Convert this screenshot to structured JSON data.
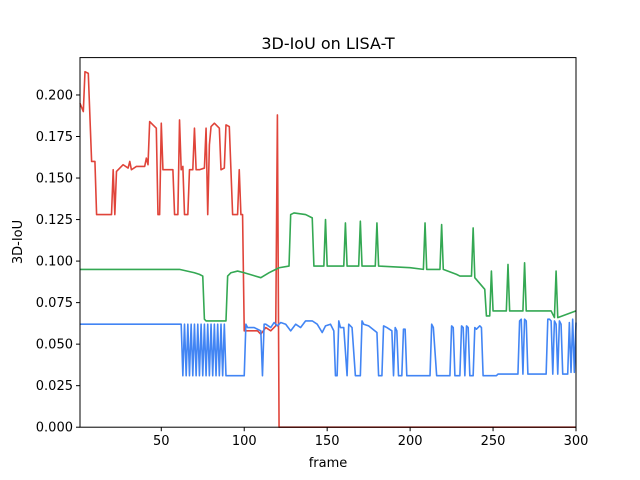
{
  "chart_data": {
    "type": "line",
    "title": "3D-IoU on LISA-T",
    "xlabel": "frame",
    "ylabel": "3D-IoU",
    "xlim": [
      1,
      300
    ],
    "ylim": [
      0,
      0.2225
    ],
    "xticks": [
      50,
      100,
      150,
      200,
      250,
      300
    ],
    "yticks": [
      0.0,
      0.025,
      0.05,
      0.075,
      0.1,
      0.125,
      0.15,
      0.175,
      0.2
    ],
    "ytick_labels": [
      "0.000",
      "0.025",
      "0.050",
      "0.075",
      "0.100",
      "0.125",
      "0.150",
      "0.175",
      "0.200"
    ],
    "grid": false,
    "legend": "none",
    "series": [
      {
        "color": "#e0443a",
        "points": [
          [
            1,
            0.195
          ],
          [
            3,
            0.19
          ],
          [
            4,
            0.214
          ],
          [
            6,
            0.213
          ],
          [
            8,
            0.16
          ],
          [
            10,
            0.16
          ],
          [
            11,
            0.128
          ],
          [
            20,
            0.128
          ],
          [
            21,
            0.155
          ],
          [
            22,
            0.128
          ],
          [
            23,
            0.154
          ],
          [
            25,
            0.156
          ],
          [
            27,
            0.158
          ],
          [
            30,
            0.156
          ],
          [
            31,
            0.16
          ],
          [
            32,
            0.155
          ],
          [
            35,
            0.157
          ],
          [
            40,
            0.157
          ],
          [
            41,
            0.162
          ],
          [
            42,
            0.158
          ],
          [
            43,
            0.184
          ],
          [
            45,
            0.182
          ],
          [
            47,
            0.18
          ],
          [
            48,
            0.128
          ],
          [
            49,
            0.128
          ],
          [
            50,
            0.183
          ],
          [
            51,
            0.155
          ],
          [
            57,
            0.155
          ],
          [
            58,
            0.128
          ],
          [
            60,
            0.128
          ],
          [
            61,
            0.185
          ],
          [
            62,
            0.155
          ],
          [
            63,
            0.157
          ],
          [
            64,
            0.128
          ],
          [
            66,
            0.128
          ],
          [
            67,
            0.155
          ],
          [
            69,
            0.155
          ],
          [
            70,
            0.18
          ],
          [
            71,
            0.155
          ],
          [
            73,
            0.155
          ],
          [
            76,
            0.156
          ],
          [
            77,
            0.18
          ],
          [
            78,
            0.128
          ],
          [
            79,
            0.17
          ],
          [
            80,
            0.181
          ],
          [
            82,
            0.183
          ],
          [
            85,
            0.18
          ],
          [
            86,
            0.155
          ],
          [
            88,
            0.156
          ],
          [
            89,
            0.182
          ],
          [
            91,
            0.181
          ],
          [
            93,
            0.128
          ],
          [
            96,
            0.128
          ],
          [
            97,
            0.155
          ],
          [
            98,
            0.128
          ],
          [
            99,
            0.128
          ],
          [
            100,
            0.058
          ],
          [
            104,
            0.058
          ],
          [
            108,
            0.058
          ],
          [
            110,
            0.056
          ],
          [
            113,
            0.06
          ],
          [
            116,
            0.058
          ],
          [
            119,
            0.061
          ],
          [
            120,
            0.188
          ],
          [
            121,
            0.0
          ],
          [
            150,
            0.0
          ],
          [
            200,
            0.0
          ],
          [
            250,
            0.0
          ],
          [
            300,
            0.0
          ]
        ]
      },
      {
        "color": "#34a853",
        "points": [
          [
            1,
            0.095
          ],
          [
            30,
            0.095
          ],
          [
            61,
            0.095
          ],
          [
            70,
            0.093
          ],
          [
            73,
            0.092
          ],
          [
            75,
            0.091
          ],
          [
            76,
            0.065
          ],
          [
            77,
            0.064
          ],
          [
            89,
            0.064
          ],
          [
            90,
            0.091
          ],
          [
            92,
            0.093
          ],
          [
            96,
            0.094
          ],
          [
            100,
            0.093
          ],
          [
            110,
            0.09
          ],
          [
            115,
            0.093
          ],
          [
            119,
            0.095
          ],
          [
            121,
            0.096
          ],
          [
            127,
            0.097
          ],
          [
            128,
            0.128
          ],
          [
            130,
            0.129
          ],
          [
            137,
            0.128
          ],
          [
            141,
            0.126
          ],
          [
            142,
            0.097
          ],
          [
            148,
            0.097
          ],
          [
            149,
            0.125
          ],
          [
            150,
            0.097
          ],
          [
            160,
            0.097
          ],
          [
            161,
            0.123
          ],
          [
            162,
            0.097
          ],
          [
            169,
            0.097
          ],
          [
            170,
            0.124
          ],
          [
            171,
            0.097
          ],
          [
            179,
            0.097
          ],
          [
            180,
            0.123
          ],
          [
            181,
            0.097
          ],
          [
            200,
            0.096
          ],
          [
            208,
            0.095
          ],
          [
            209,
            0.123
          ],
          [
            210,
            0.095
          ],
          [
            218,
            0.095
          ],
          [
            219,
            0.122
          ],
          [
            220,
            0.095
          ],
          [
            228,
            0.092
          ],
          [
            230,
            0.091
          ],
          [
            237,
            0.091
          ],
          [
            238,
            0.12
          ],
          [
            239,
            0.09
          ],
          [
            245,
            0.083
          ],
          [
            246,
            0.067
          ],
          [
            248,
            0.067
          ],
          [
            249,
            0.094
          ],
          [
            250,
            0.07
          ],
          [
            258,
            0.07
          ],
          [
            259,
            0.098
          ],
          [
            260,
            0.07
          ],
          [
            268,
            0.07
          ],
          [
            269,
            0.099
          ],
          [
            270,
            0.07
          ],
          [
            285,
            0.07
          ],
          [
            287,
            0.066
          ],
          [
            288,
            0.094
          ],
          [
            289,
            0.066
          ],
          [
            300,
            0.07
          ]
        ]
      },
      {
        "color": "#4285f4",
        "points": [
          [
            1,
            0.062
          ],
          [
            30,
            0.062
          ],
          [
            62,
            0.062
          ],
          [
            63,
            0.031
          ],
          [
            64,
            0.062
          ],
          [
            65,
            0.031
          ],
          [
            66,
            0.062
          ],
          [
            67,
            0.031
          ],
          [
            68,
            0.062
          ],
          [
            69,
            0.031
          ],
          [
            70,
            0.062
          ],
          [
            71,
            0.031
          ],
          [
            72,
            0.062
          ],
          [
            73,
            0.031
          ],
          [
            74,
            0.062
          ],
          [
            75,
            0.031
          ],
          [
            76,
            0.062
          ],
          [
            77,
            0.031
          ],
          [
            78,
            0.062
          ],
          [
            79,
            0.031
          ],
          [
            80,
            0.062
          ],
          [
            81,
            0.031
          ],
          [
            82,
            0.062
          ],
          [
            83,
            0.031
          ],
          [
            84,
            0.062
          ],
          [
            85,
            0.031
          ],
          [
            86,
            0.062
          ],
          [
            87,
            0.031
          ],
          [
            88,
            0.062
          ],
          [
            89,
            0.031
          ],
          [
            92,
            0.031
          ],
          [
            100,
            0.031
          ],
          [
            101,
            0.062
          ],
          [
            102,
            0.06
          ],
          [
            106,
            0.06
          ],
          [
            110,
            0.058
          ],
          [
            111,
            0.031
          ],
          [
            112,
            0.062
          ],
          [
            113,
            0.062
          ],
          [
            116,
            0.06
          ],
          [
            118,
            0.063
          ],
          [
            120,
            0.061
          ],
          [
            122,
            0.063
          ],
          [
            125,
            0.062
          ],
          [
            128,
            0.058
          ],
          [
            131,
            0.062
          ],
          [
            134,
            0.06
          ],
          [
            137,
            0.064
          ],
          [
            141,
            0.064
          ],
          [
            144,
            0.062
          ],
          [
            147,
            0.057
          ],
          [
            149,
            0.061
          ],
          [
            152,
            0.062
          ],
          [
            154,
            0.058
          ],
          [
            155,
            0.031
          ],
          [
            156,
            0.031
          ],
          [
            157,
            0.064
          ],
          [
            158,
            0.06
          ],
          [
            160,
            0.06
          ],
          [
            162,
            0.031
          ],
          [
            163,
            0.062
          ],
          [
            165,
            0.06
          ],
          [
            167,
            0.031
          ],
          [
            170,
            0.031
          ],
          [
            171,
            0.064
          ],
          [
            172,
            0.062
          ],
          [
            175,
            0.061
          ],
          [
            180,
            0.057
          ],
          [
            181,
            0.031
          ],
          [
            183,
            0.031
          ],
          [
            184,
            0.061
          ],
          [
            186,
            0.06
          ],
          [
            189,
            0.058
          ],
          [
            190,
            0.031
          ],
          [
            191,
            0.06
          ],
          [
            192,
            0.058
          ],
          [
            193,
            0.031
          ],
          [
            195,
            0.031
          ],
          [
            196,
            0.059
          ],
          [
            197,
            0.059
          ],
          [
            198,
            0.031
          ],
          [
            212,
            0.031
          ],
          [
            213,
            0.062
          ],
          [
            214,
            0.06
          ],
          [
            216,
            0.031
          ],
          [
            224,
            0.031
          ],
          [
            225,
            0.061
          ],
          [
            226,
            0.06
          ],
          [
            227,
            0.031
          ],
          [
            230,
            0.031
          ],
          [
            231,
            0.061
          ],
          [
            232,
            0.06
          ],
          [
            233,
            0.031
          ],
          [
            234,
            0.061
          ],
          [
            235,
            0.06
          ],
          [
            236,
            0.031
          ],
          [
            238,
            0.031
          ],
          [
            239,
            0.06
          ],
          [
            240,
            0.059
          ],
          [
            242,
            0.061
          ],
          [
            243,
            0.06
          ],
          [
            244,
            0.031
          ],
          [
            252,
            0.031
          ],
          [
            253,
            0.032
          ],
          [
            265,
            0.032
          ],
          [
            266,
            0.064
          ],
          [
            267,
            0.065
          ],
          [
            268,
            0.032
          ],
          [
            269,
            0.065
          ],
          [
            270,
            0.064
          ],
          [
            271,
            0.032
          ],
          [
            282,
            0.032
          ],
          [
            283,
            0.065
          ],
          [
            284,
            0.065
          ],
          [
            285,
            0.064
          ],
          [
            286,
            0.032
          ],
          [
            287,
            0.064
          ],
          [
            288,
            0.062
          ],
          [
            289,
            0.032
          ],
          [
            290,
            0.064
          ],
          [
            291,
            0.062
          ],
          [
            292,
            0.032
          ],
          [
            295,
            0.032
          ],
          [
            296,
            0.063
          ],
          [
            297,
            0.033
          ],
          [
            298,
            0.065
          ],
          [
            299,
            0.033
          ],
          [
            300,
            0.063
          ]
        ]
      }
    ]
  }
}
